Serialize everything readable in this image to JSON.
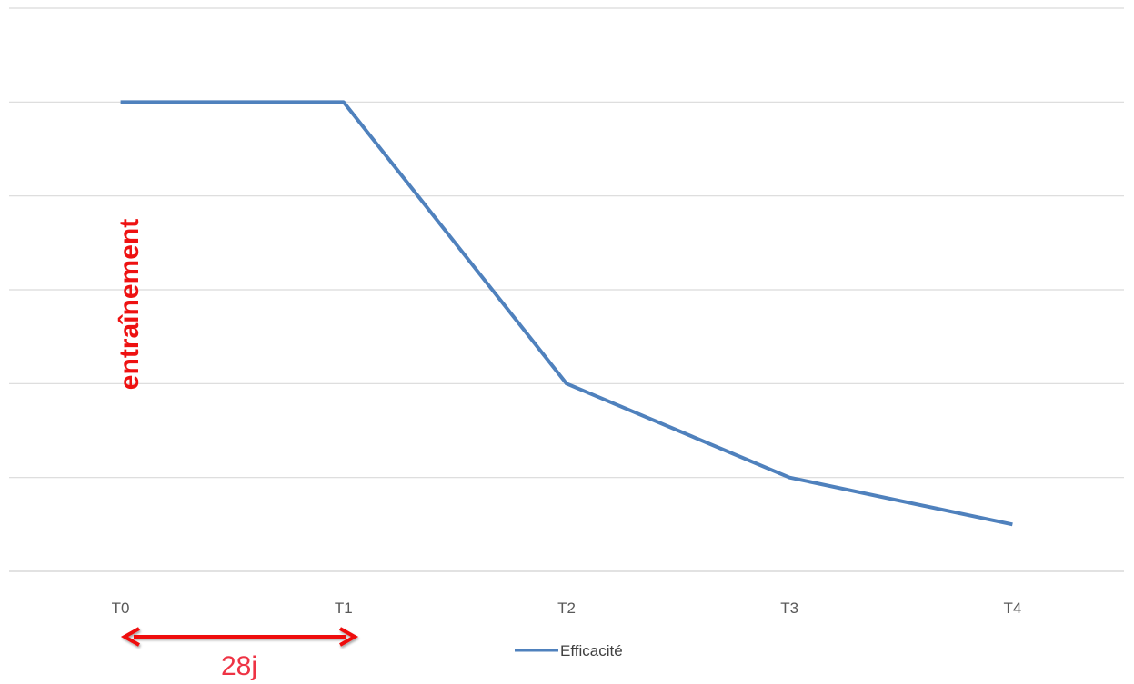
{
  "chart_data": {
    "type": "line",
    "categories": [
      "T0",
      "T1",
      "T2",
      "T3",
      "T4"
    ],
    "series": [
      {
        "name": "Efficacité",
        "values": [
          5,
          5,
          2,
          1,
          0.5
        ],
        "color": "#4f81bd"
      }
    ],
    "ylim": [
      0,
      6
    ],
    "grid": true,
    "legend_position": "bottom",
    "annotations": {
      "vertical_label": "entraînement",
      "duration_label": "28j",
      "color": "#ee1111",
      "duration_color": "#ee3344"
    }
  }
}
